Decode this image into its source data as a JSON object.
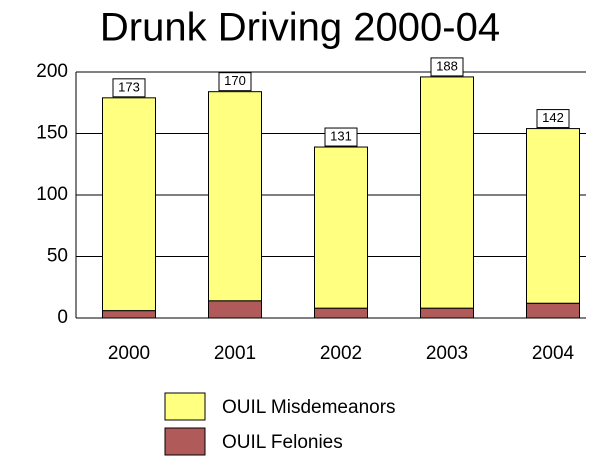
{
  "chart_data": {
    "type": "stacked_bar",
    "title": "Drunk Driving 2000-04",
    "categories": [
      "2000",
      "2001",
      "2002",
      "2003",
      "2004"
    ],
    "series": [
      {
        "name": "OUIL Felonies",
        "color": "#b05a5a",
        "values": [
          6,
          14,
          8,
          8,
          12
        ]
      },
      {
        "name": "OUIL Misdemeanors",
        "color": "#ffff80",
        "values": [
          173,
          170,
          131,
          188,
          142
        ]
      }
    ],
    "ylim": [
      0,
      200
    ],
    "yticks": [
      0,
      50,
      100,
      150,
      200
    ],
    "grid": true
  }
}
